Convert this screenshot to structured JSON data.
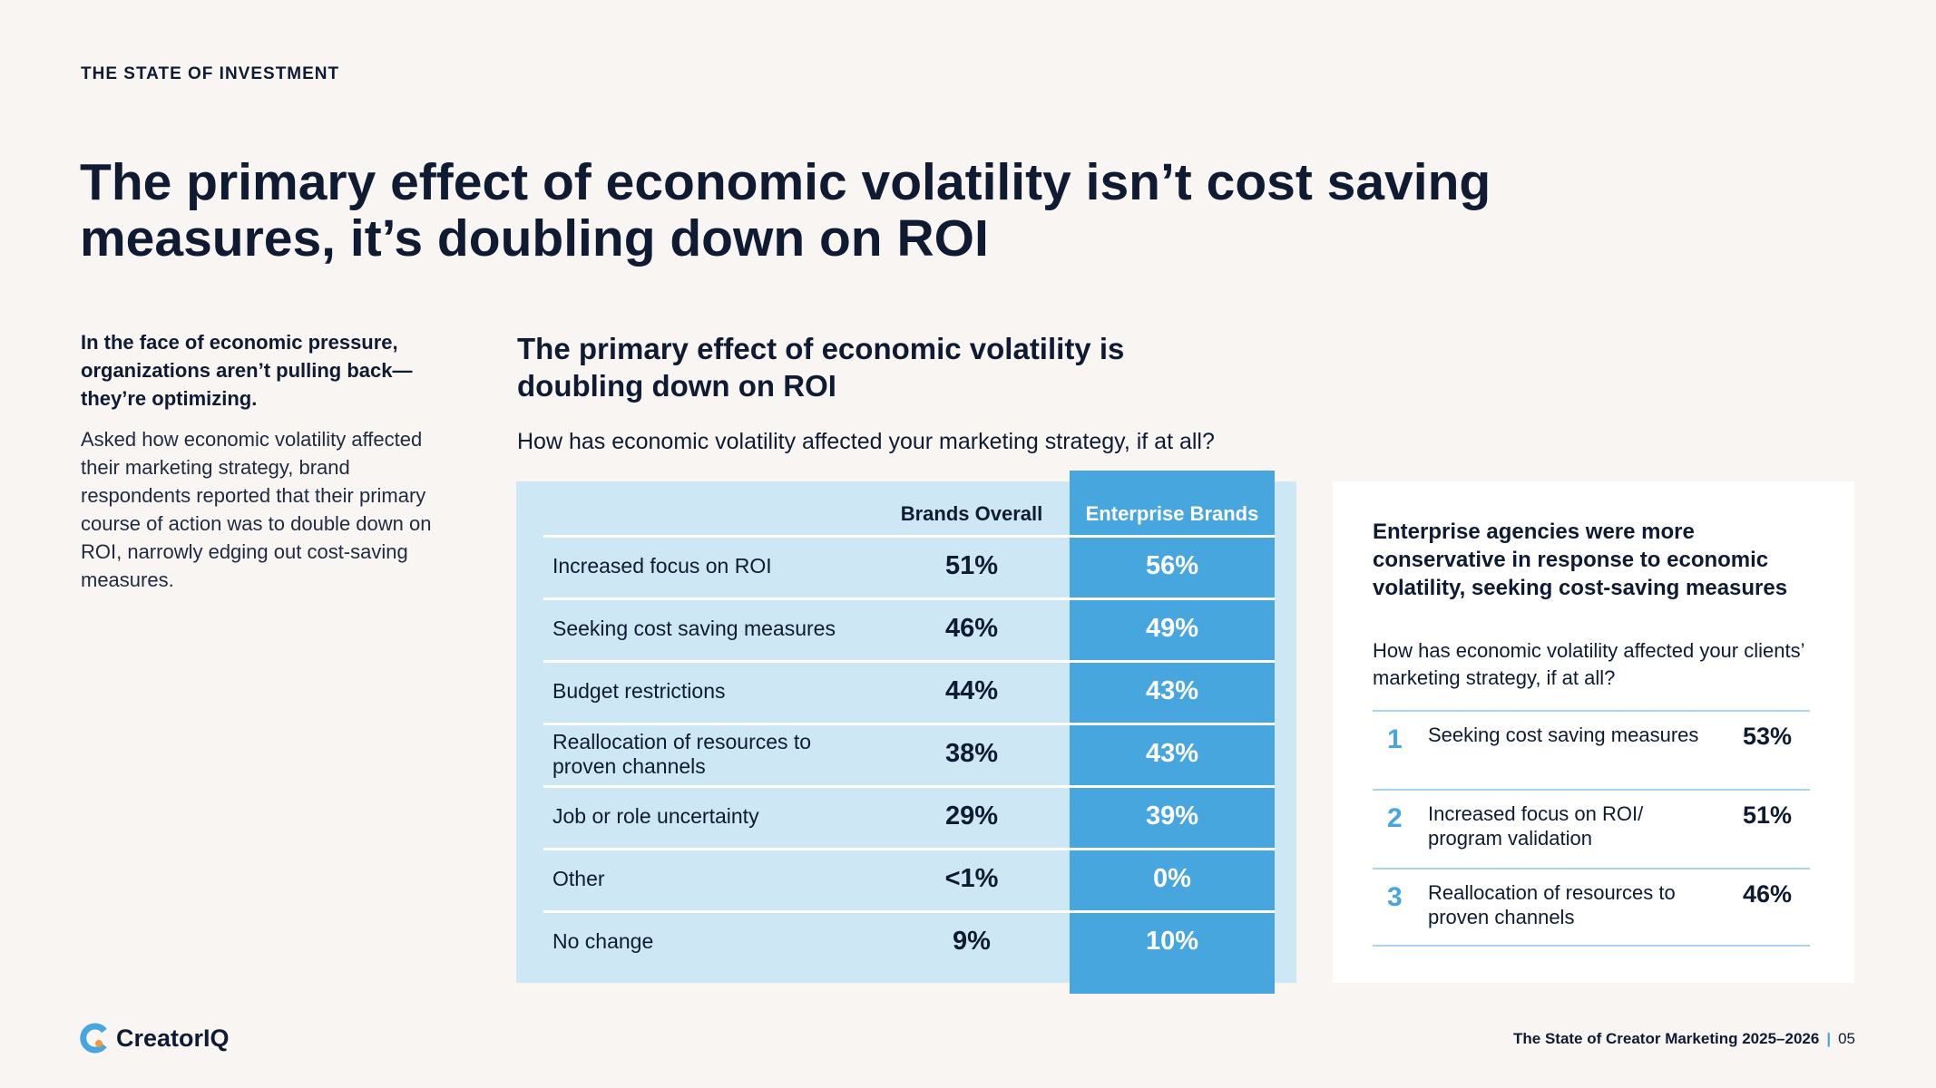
{
  "header": {
    "eyebrow": "THE STATE OF INVESTMENT",
    "headline": "The primary effect of economic volatility isn’t cost saving measures, it’s doubling down on ROI"
  },
  "intro": {
    "bold": "In the face of economic pressure, organizations aren’t pulling back—they’re optimizing.",
    "body": "Asked how economic volatility affected their marketing strategy, brand respondents reported that their primary course of action was to double down on ROI, narrowly edging out cost-saving measures."
  },
  "chart": {
    "title": "The primary effect of economic volatility is doubling down on ROI",
    "question": "How has economic volatility affected your marketing strategy, if at all?",
    "col_overall": "Brands Overall",
    "col_enterprise": "Enterprise Brands",
    "rows": [
      {
        "label": "Increased focus on ROI",
        "overall": "51%",
        "enterprise": "56%"
      },
      {
        "label": "Seeking cost saving measures",
        "overall": "46%",
        "enterprise": "49%"
      },
      {
        "label": "Budget restrictions",
        "overall": "44%",
        "enterprise": "43%"
      },
      {
        "label": "Reallocation of resources to proven channels",
        "overall": "38%",
        "enterprise": "43%"
      },
      {
        "label": "Job or role uncertainty",
        "overall": "29%",
        "enterprise": "39%"
      },
      {
        "label": "Other",
        "overall": "<1%",
        "enterprise": "0%"
      },
      {
        "label": "No change",
        "overall": "9%",
        "enterprise": "10%"
      }
    ]
  },
  "chart_data": {
    "type": "table",
    "title": "The primary effect of economic volatility is doubling down on ROI",
    "categories": [
      "Increased focus on ROI",
      "Seeking cost saving measures",
      "Budget restrictions",
      "Reallocation of resources to proven channels",
      "Job or role uncertainty",
      "Other",
      "No change"
    ],
    "series": [
      {
        "name": "Brands Overall",
        "values": [
          51,
          46,
          44,
          38,
          29,
          0.5,
          9
        ]
      },
      {
        "name": "Enterprise Brands",
        "values": [
          56,
          49,
          43,
          43,
          39,
          0,
          10
        ]
      }
    ]
  },
  "side": {
    "title": "Enterprise agencies were more conservative in response to economic volatility, seeking cost-saving measures",
    "question": "How has economic volatility affected your clients’ marketing strategy, if at all?",
    "items": [
      {
        "rank": "1",
        "label": "Seeking cost saving measures",
        "value": "53%"
      },
      {
        "rank": "2",
        "label": "Increased focus on ROI/ program validation",
        "value": "51%"
      },
      {
        "rank": "3",
        "label": "Reallocation of resources to proven channels",
        "value": "46%"
      }
    ]
  },
  "footer": {
    "brand": "CreatorIQ",
    "report": "The State of Creator Marketing 2025–2026",
    "separator": "|",
    "page": "05"
  },
  "colors": {
    "navy": "#0e1b33",
    "accent": "#48a6de",
    "table_bg": "#cde7f5",
    "page_bg": "#f9f5f2"
  }
}
